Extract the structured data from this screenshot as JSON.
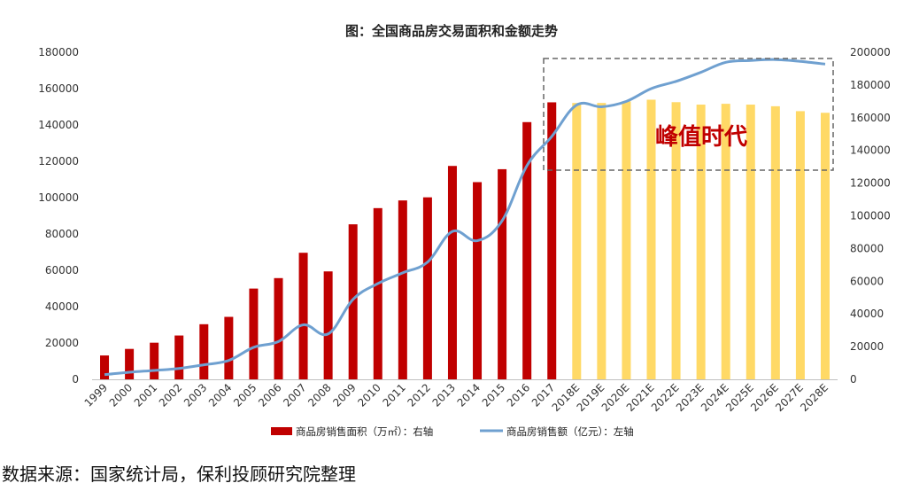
{
  "chart_data": {
    "type": "bar+line",
    "title": "图：全国商品房交易面积和金额走势",
    "categories": [
      "1999",
      "2000",
      "2001",
      "2002",
      "2003",
      "2004",
      "2005",
      "2006",
      "2007",
      "2008",
      "2009",
      "2010",
      "2011",
      "2012",
      "2013",
      "2014",
      "2015",
      "2016",
      "2017",
      "2018E",
      "2019E",
      "2020E",
      "2021E",
      "2022E",
      "2023E",
      "2024E",
      "2025E",
      "2026E",
      "2027E",
      "2028E"
    ],
    "bar_series": {
      "name": "商品房销售面积（万㎡）：右轴",
      "axis": "right",
      "values": [
        14600,
        18600,
        22400,
        26800,
        33700,
        38200,
        55500,
        61900,
        77400,
        66000,
        94800,
        104700,
        109400,
        111300,
        130500,
        120600,
        128500,
        157300,
        169400,
        169000,
        169000,
        170000,
        171000,
        169500,
        168000,
        168500,
        168000,
        167000,
        164000,
        163000
      ],
      "colors_by_category": {
        "actual": "#c00000",
        "estimate": "#ffd966"
      }
    },
    "line_series": {
      "name": "商品房销售额（亿元）：左轴",
      "axis": "left",
      "color": "#6fa0d0",
      "values": [
        2600,
        3900,
        4900,
        6000,
        8000,
        10400,
        17600,
        20800,
        30000,
        25000,
        44000,
        52700,
        58600,
        64500,
        81400,
        76300,
        87300,
        117600,
        133700,
        151000,
        150000,
        153000,
        160000,
        164000,
        169000,
        174500,
        175500,
        176000,
        175000,
        173500
      ]
    },
    "left_axis": {
      "min": 0,
      "max": 180000,
      "ticks": [
        "0",
        "20000",
        "40000",
        "60000",
        "80000",
        "100000",
        "120000",
        "140000",
        "160000",
        "180000"
      ]
    },
    "right_axis": {
      "min": 0,
      "max": 200000,
      "ticks": [
        "0",
        "20000",
        "40000",
        "60000",
        "80000",
        "100000",
        "120000",
        "140000",
        "160000",
        "180000",
        "200000"
      ]
    },
    "annotation": "峰值时代",
    "legend_placement": "bottom",
    "grid": false
  },
  "source_note": "数据来源：国家统计局，保利投顾研究院整理"
}
